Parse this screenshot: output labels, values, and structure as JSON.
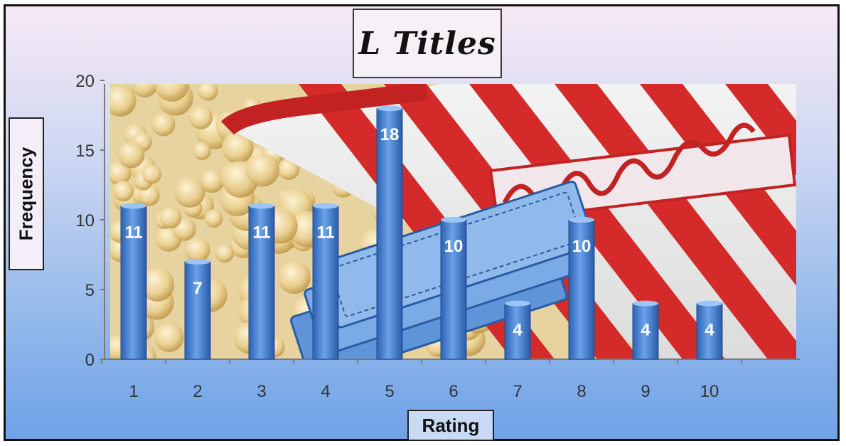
{
  "chart_data": {
    "type": "bar",
    "title": "L Titles",
    "xlabel": "Rating",
    "ylabel": "Frequency",
    "categories": [
      "1",
      "2",
      "3",
      "4",
      "5",
      "6",
      "7",
      "8",
      "9",
      "10"
    ],
    "values": [
      11,
      7,
      11,
      11,
      18,
      10,
      4,
      10,
      4,
      4
    ],
    "ylim": [
      0,
      20
    ],
    "yticks": [
      "0",
      "5",
      "10",
      "15",
      "20"
    ],
    "grid": false,
    "legend": "none",
    "bar_color": "#4a86d6",
    "data_label_color": "#ffffff",
    "plot_background": "popcorn-photo"
  }
}
